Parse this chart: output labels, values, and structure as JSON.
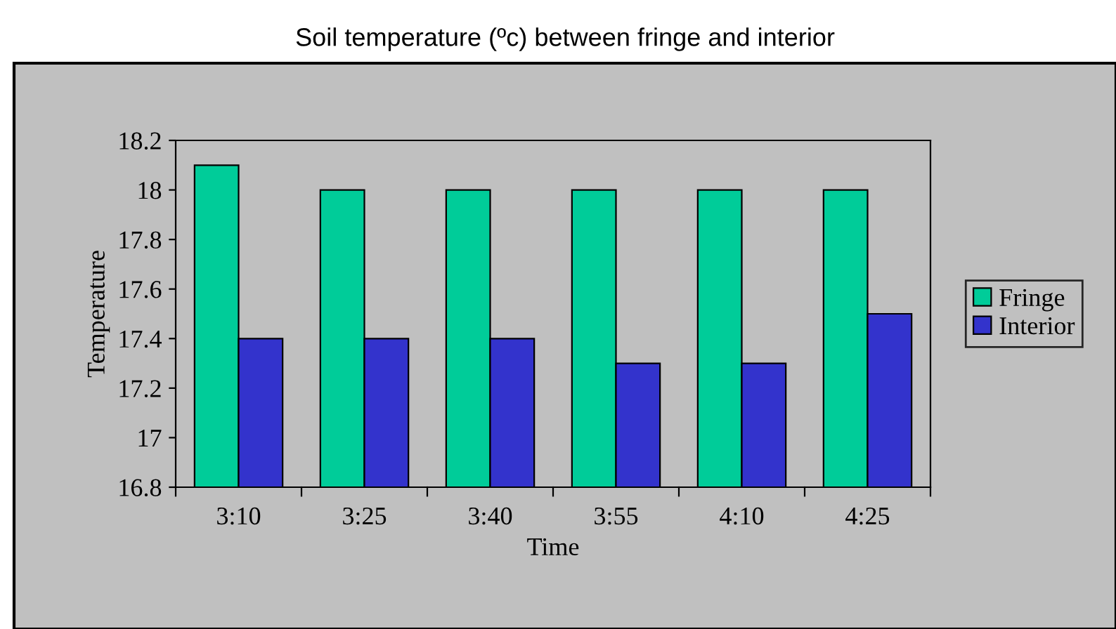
{
  "chart_data": {
    "type": "bar",
    "title": "Soil temperature (ºc) between fringe and interior",
    "xlabel": "Time",
    "ylabel": "Temperature",
    "categories": [
      "3:10",
      "3:25",
      "3:40",
      "3:55",
      "4:10",
      "4:25"
    ],
    "series": [
      {
        "name": "Fringe",
        "color": "#00cc99",
        "values": [
          18.1,
          18,
          18,
          18,
          18,
          18
        ]
      },
      {
        "name": "Interior",
        "color": "#3333cc",
        "values": [
          17.4,
          17.4,
          17.4,
          17.3,
          17.3,
          17.5
        ]
      }
    ],
    "ylim": [
      16.8,
      18.2
    ],
    "yticks": [
      16.8,
      17,
      17.2,
      17.4,
      17.6,
      17.8,
      18,
      18.2
    ],
    "grid": false,
    "legend": "right"
  }
}
